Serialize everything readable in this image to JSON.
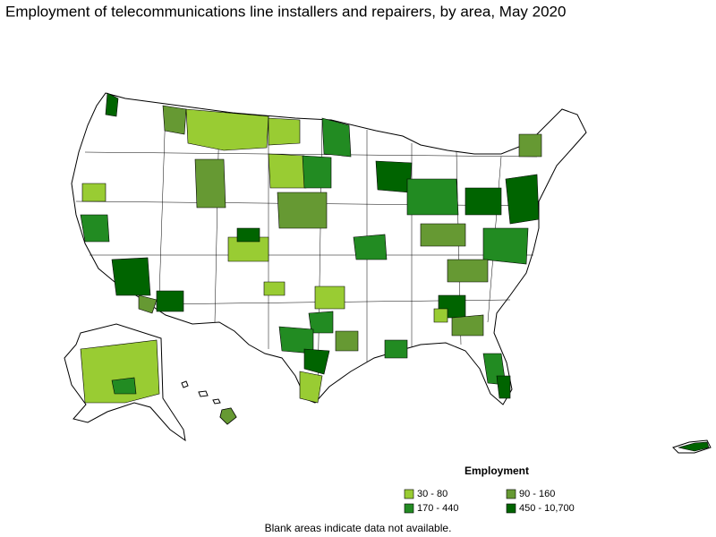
{
  "title": "Employment of telecommunications line installers and repairers, by area, May 2020",
  "legend": {
    "title": "Employment",
    "items": [
      {
        "label": "30 - 80",
        "color": "#99cc33"
      },
      {
        "label": "90 - 160",
        "color": "#669933"
      },
      {
        "label": "170 - 440",
        "color": "#228b22"
      },
      {
        "label": "450 - 10,700",
        "color": "#006400"
      }
    ]
  },
  "note": "Blank areas indicate data not available."
}
